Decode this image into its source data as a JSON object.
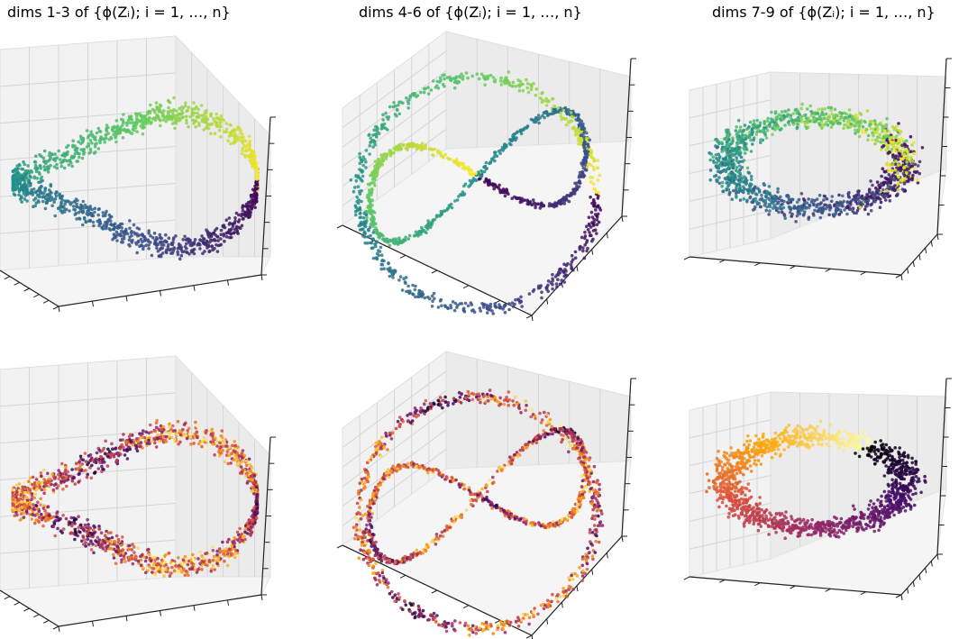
{
  "figure": {
    "column_titles": [
      "dims 1-3 of {ϕ(Zᵢ); i = 1, …, n}",
      "dims 4-6 of {ϕ(Zᵢ); i = 1, …, n}",
      "dims 7-9 of {ϕ(Zᵢ); i = 1, …, n}"
    ]
  },
  "colormaps": {
    "viridis": [
      "#440154",
      "#3b528b",
      "#21918c",
      "#5ec962",
      "#fde725"
    ],
    "inferno": [
      "#000004",
      "#420a68",
      "#932667",
      "#dd513a",
      "#fca50a",
      "#fcffa4"
    ]
  },
  "chart_data": [
    {
      "type": "scatter",
      "projection": "3d",
      "row": 1,
      "column": 1,
      "shape": "twisted band",
      "colormap": "viridis",
      "axis_tick_labels": "none",
      "grid": true
    },
    {
      "type": "scatter",
      "projection": "3d",
      "row": 1,
      "column": 2,
      "shape": "figure-eight loop with outer ring",
      "colormap": "viridis",
      "axis_tick_labels": "none",
      "grid": true
    },
    {
      "type": "scatter",
      "projection": "3d",
      "row": 1,
      "column": 3,
      "shape": "torus-like ring",
      "colormap": "viridis",
      "axis_tick_labels": "none",
      "grid": true
    },
    {
      "type": "scatter",
      "projection": "3d",
      "row": 2,
      "column": 1,
      "shape": "twisted band",
      "colormap": "inferno",
      "axis_tick_labels": "none",
      "grid": true
    },
    {
      "type": "scatter",
      "projection": "3d",
      "row": 2,
      "column": 2,
      "shape": "figure-eight loop with outer ring",
      "colormap": "inferno",
      "axis_tick_labels": "none",
      "grid": true
    },
    {
      "type": "scatter",
      "projection": "3d",
      "row": 2,
      "column": 3,
      "shape": "torus-like ring",
      "colormap": "inferno",
      "axis_tick_labels": "none",
      "grid": true
    }
  ]
}
